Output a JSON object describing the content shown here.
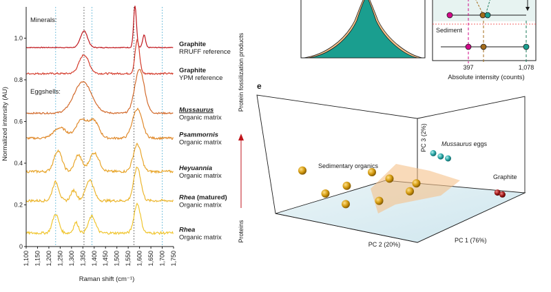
{
  "chart_data": [
    {
      "type": "line",
      "panel": "",
      "xlabel": "Raman shift (cm⁻¹)",
      "ylabel": "Normalized intensity (AU)",
      "xlim": [
        1100,
        1750
      ],
      "ylim": [
        0,
        1.15
      ],
      "x_ticks": [
        "1,100",
        "1,150",
        "1,200",
        "1,250",
        "1,300",
        "1,350",
        "1,400",
        "1,450",
        "1,500",
        "1,550",
        "1,600",
        "1,650",
        "1,700",
        "1,750"
      ],
      "y_ticks": [
        "0",
        "0.2",
        "0.4",
        "0.6",
        "0.8",
        "1.0"
      ],
      "group_labels": {
        "minerals": "Minerals:",
        "eggshells": "Eggshells:"
      },
      "reference_lines": [
        1230,
        1355,
        1390,
        1575,
        1700
      ],
      "side_annotation": {
        "top": "Protein fossilization products",
        "bottom": "Proteins"
      },
      "series": [
        {
          "name": "Graphite",
          "subtitle": "RRUFF reference",
          "baseline": 0.955,
          "color": "#c0161c",
          "peaks": [
            [
              1355,
              22,
              0.08
            ],
            [
              1580,
              9,
              0.2
            ],
            [
              1620,
              9,
              0.06
            ]
          ],
          "noise": 0.004
        },
        {
          "name": "Graphite",
          "subtitle": "YPM reference",
          "baseline": 0.83,
          "color": "#d43a2a",
          "peaks": [
            [
              1355,
              30,
              0.09
            ],
            [
              1590,
              14,
              0.16
            ]
          ],
          "noise": 0.008
        },
        {
          "name": "Mussaurus",
          "subtitle": "Organic matrix",
          "baseline": 0.64,
          "color": "#d2692a",
          "peaks": [
            [
              1350,
              55,
              0.15
            ],
            [
              1600,
              30,
              0.21
            ]
          ],
          "noise": 0.007
        },
        {
          "name": "Psammornis",
          "subtitle": "Organic matrix",
          "baseline": 0.52,
          "color": "#e0892a",
          "peaks": [
            [
              1250,
              40,
              0.05
            ],
            [
              1345,
              35,
              0.09
            ],
            [
              1400,
              30,
              0.08
            ],
            [
              1590,
              30,
              0.14
            ]
          ],
          "noise": 0.01
        },
        {
          "name": "Heyuannia",
          "subtitle": "Organic matrix",
          "baseline": 0.36,
          "color": "#e8a52a",
          "peaks": [
            [
              1240,
              25,
              0.1
            ],
            [
              1330,
              22,
              0.08
            ],
            [
              1400,
              30,
              0.09
            ],
            [
              1590,
              25,
              0.13
            ]
          ],
          "noise": 0.012
        },
        {
          "name": "Rhea (matured)",
          "subtitle": "Organic matrix",
          "baseline": 0.22,
          "color": "#ecb52c",
          "peaks": [
            [
              1230,
              20,
              0.09
            ],
            [
              1310,
              18,
              0.05
            ],
            [
              1380,
              25,
              0.1
            ],
            [
              1590,
              22,
              0.16
            ]
          ],
          "noise": 0.012
        },
        {
          "name": "Rhea",
          "subtitle": "Organic matrix",
          "baseline": 0.065,
          "color": "#f0c52e",
          "peaks": [
            [
              1230,
              20,
              0.09
            ],
            [
              1320,
              15,
              0.05
            ],
            [
              1390,
              22,
              0.08
            ],
            [
              1590,
              20,
              0.14
            ]
          ],
          "noise": 0.012
        }
      ]
    },
    {
      "type": "area",
      "panel": "",
      "xlabel": "Absolute intensity (counts)",
      "x_ticks": [
        "397",
        "1,078"
      ],
      "inset_label": "Sediment",
      "colors": [
        "#1a9e8f",
        "#f5c28a",
        "#d10a8a",
        "#a36b1a"
      ]
    },
    {
      "type": "scatter",
      "panel": "e",
      "axes": {
        "x": "PC 1 (76%)",
        "y": "PC 2 (20%)",
        "z": "PC 3 (2%)"
      },
      "groups": [
        {
          "name": "Sedimentary organics",
          "color": "#c8930a",
          "points": [
            [
              -0.6,
              0.4,
              0.3
            ],
            [
              -0.3,
              0.1,
              0.1
            ],
            [
              -0.1,
              -0.2,
              -0.1
            ],
            [
              0.1,
              0.3,
              0.2
            ],
            [
              0.2,
              0.0,
              0.05
            ],
            [
              -0.4,
              -0.3,
              -0.15
            ],
            [
              -0.5,
              0.0,
              -0.05
            ],
            [
              0.3,
              0.2,
              0.15
            ],
            [
              0.0,
              0.5,
              0.25
            ]
          ]
        },
        {
          "name": "Mussaurus eggs",
          "color": "#2aa6a6",
          "points": [
            [
              0.6,
              0.9,
              0.55
            ],
            [
              0.65,
              0.85,
              0.5
            ],
            [
              0.7,
              0.8,
              0.48
            ]
          ]
        },
        {
          "name": "Graphite",
          "color": "#9a1a1a",
          "points": [
            [
              0.95,
              0.1,
              0.02
            ],
            [
              0.98,
              0.05,
              0.0
            ]
          ]
        }
      ]
    }
  ]
}
